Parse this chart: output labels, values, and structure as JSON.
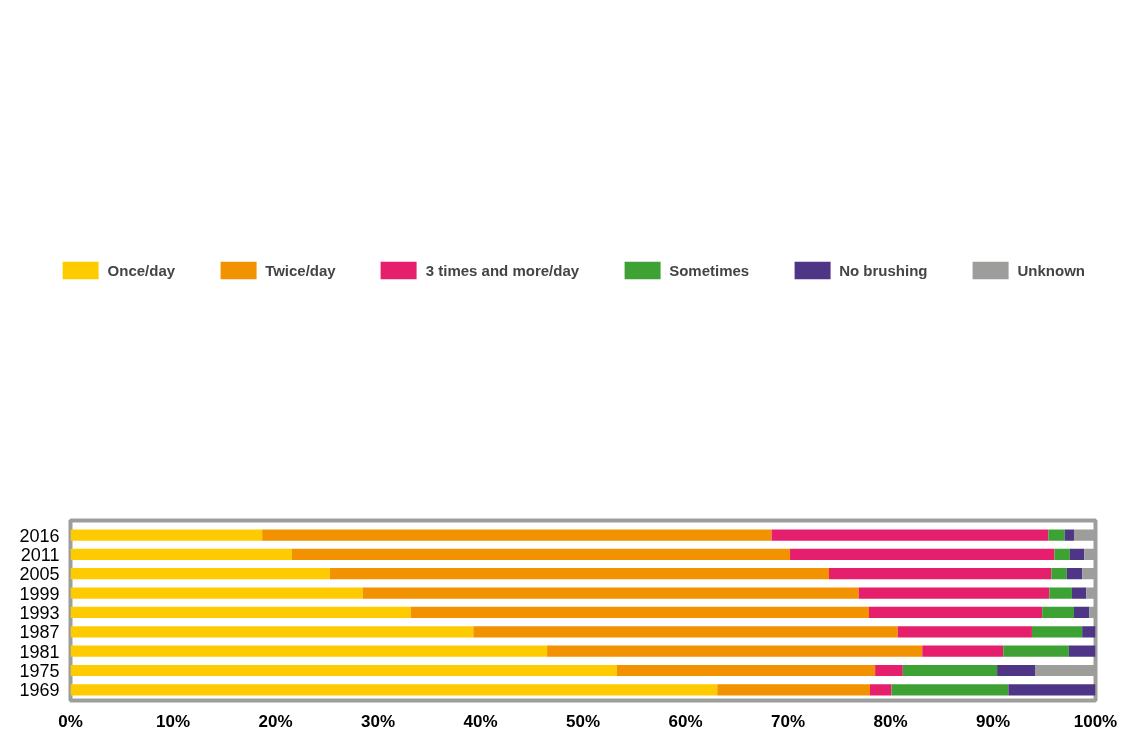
{
  "chart_data": {
    "type": "bar",
    "orientation": "horizontal",
    "stacked": true,
    "categories": [
      "2016",
      "2011",
      "2005",
      "1999",
      "1993",
      "1987",
      "1981",
      "1975",
      "1969"
    ],
    "series": [
      {
        "name": "Once/day",
        "color": "#fecb00",
        "values": [
          18.7,
          21.6,
          25.3,
          28.5,
          33.2,
          39.3,
          46.5,
          53.3,
          63.1
        ]
      },
      {
        "name": "Twice/day",
        "color": "#f39200",
        "values": [
          49.7,
          48.6,
          48.7,
          48.4,
          44.7,
          41.4,
          36.6,
          25.2,
          14.9
        ]
      },
      {
        "name": "3 times and more/day",
        "color": "#e61f6c",
        "values": [
          27.0,
          25.8,
          21.7,
          18.6,
          16.9,
          13.1,
          7.9,
          2.7,
          2.1
        ]
      },
      {
        "name": "Sometimes",
        "color": "#3ea134",
        "values": [
          1.6,
          1.5,
          1.5,
          2.2,
          3.1,
          4.9,
          6.4,
          9.2,
          11.4
        ]
      },
      {
        "name": "No brushing",
        "color": "#4f3585",
        "values": [
          0.9,
          1.4,
          1.5,
          1.4,
          1.5,
          1.3,
          2.6,
          3.7,
          8.5
        ]
      },
      {
        "name": "Unknown",
        "color": "#9d9d9c",
        "values": [
          2.1,
          1.1,
          1.3,
          0.9,
          0.6,
          0,
          0,
          5.9,
          0
        ]
      }
    ],
    "xlim": [
      0,
      100
    ],
    "xticks": [
      {
        "value": 0,
        "label": "0%"
      },
      {
        "value": 10,
        "label": "10%"
      },
      {
        "value": 20,
        "label": "20%"
      },
      {
        "value": 30,
        "label": "30%"
      },
      {
        "value": 40,
        "label": "40%"
      },
      {
        "value": 50,
        "label": "50%"
      },
      {
        "value": 60,
        "label": "60%"
      },
      {
        "value": 70,
        "label": "70%"
      },
      {
        "value": 80,
        "label": "80%"
      },
      {
        "value": 90,
        "label": "90%"
      },
      {
        "value": 100,
        "label": "100%"
      }
    ],
    "grid": false,
    "legend": "top"
  }
}
